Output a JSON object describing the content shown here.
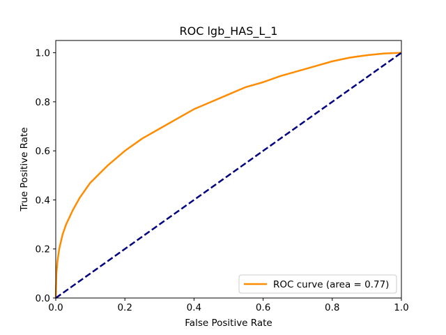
{
  "chart_data": {
    "type": "line",
    "title": "ROC lgb_HAS_L_1",
    "xlabel": "False Positive Rate",
    "ylabel": "True Positive Rate",
    "xlim": [
      0.0,
      1.0
    ],
    "ylim": [
      0.0,
      1.05
    ],
    "xticks": [
      "0.0",
      "0.2",
      "0.4",
      "0.6",
      "0.8",
      "1.0"
    ],
    "yticks": [
      "0.0",
      "0.2",
      "0.4",
      "0.6",
      "0.8",
      "1.0"
    ],
    "grid": false,
    "legend_position": "lower right",
    "series": [
      {
        "name": "ROC curve (area = 0.77)",
        "color": "#ff8c00",
        "style": "solid",
        "x": [
          0.0,
          0.002,
          0.005,
          0.01,
          0.02,
          0.03,
          0.05,
          0.07,
          0.1,
          0.15,
          0.2,
          0.25,
          0.3,
          0.35,
          0.4,
          0.45,
          0.5,
          0.55,
          0.6,
          0.65,
          0.7,
          0.75,
          0.8,
          0.85,
          0.9,
          0.95,
          1.0
        ],
        "y": [
          0.0,
          0.1,
          0.15,
          0.2,
          0.26,
          0.3,
          0.36,
          0.41,
          0.47,
          0.54,
          0.6,
          0.65,
          0.69,
          0.73,
          0.77,
          0.8,
          0.83,
          0.86,
          0.88,
          0.905,
          0.925,
          0.945,
          0.965,
          0.98,
          0.99,
          0.997,
          1.0
        ]
      },
      {
        "color": "#000080",
        "style": "dashed",
        "x": [
          0.0,
          1.0
        ],
        "y": [
          0.0,
          1.0
        ]
      }
    ]
  }
}
